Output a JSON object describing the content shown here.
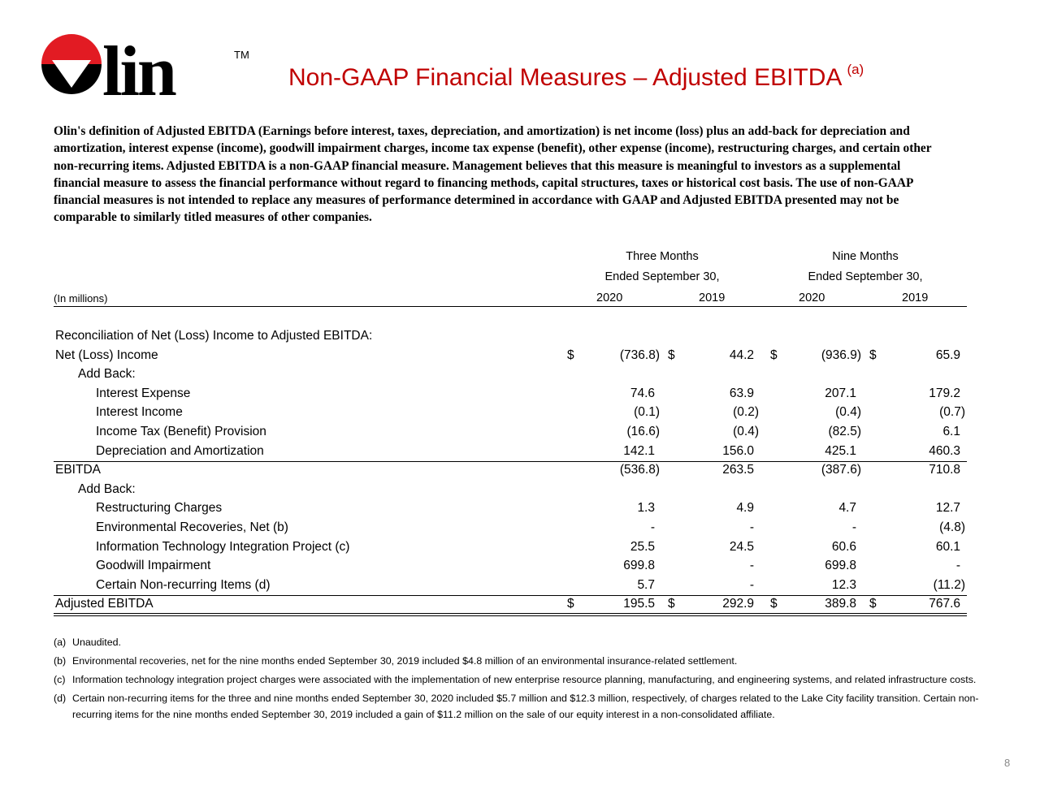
{
  "logo": {
    "text": "lin",
    "trademark": "TM"
  },
  "header": {
    "title": "Non-GAAP Financial Measures – Adjusted EBITDA",
    "title_note": "(a)"
  },
  "definition": "Olin's definition of Adjusted EBITDA (Earnings before interest, taxes, depreciation, and amortization) is net income (loss) plus an add-back for depreciation and amortization, interest expense (income), goodwill impairment charges, income tax expense (benefit), other expense (income), restructuring charges, and certain other non-recurring items.  Adjusted EBITDA is a non-GAAP financial measure.  Management believes that this measure is meaningful to investors as a supplemental financial measure to assess the financial performance without regard to financing methods, capital structures, taxes or historical cost basis.  The use of non-GAAP financial measures is not intended to replace any measures of performance determined in accordance with GAAP and Adjusted EBITDA presented may not be comparable to similarly titled measures of other companies.",
  "table": {
    "units": "(In millions)",
    "currency": "$",
    "groups": [
      {
        "line1": "Three Months",
        "line2": "Ended September 30,",
        "years": [
          "2020",
          "2019"
        ]
      },
      {
        "line1": "Nine Months",
        "line2": "Ended September 30,",
        "years": [
          "2020",
          "2019"
        ]
      }
    ],
    "rows": [
      {
        "label": "Reconciliation of Net (Loss) Income to Adjusted EBITDA:",
        "indent": 0
      },
      {
        "label": "Net (Loss) Income",
        "indent": 0,
        "currency": true,
        "values": [
          "(736.8)",
          "44.2",
          "(936.9)",
          "65.9"
        ]
      },
      {
        "label": "Add Back:",
        "indent": 1
      },
      {
        "label": "Interest Expense",
        "indent": 2,
        "values": [
          "74.6",
          "63.9",
          "207.1",
          "179.2"
        ]
      },
      {
        "label": "Interest Income",
        "indent": 2,
        "values": [
          "(0.1)",
          "(0.2)",
          "(0.4)",
          "(0.7)"
        ]
      },
      {
        "label": "Income Tax (Benefit) Provision",
        "indent": 2,
        "values": [
          "(16.6)",
          "(0.4)",
          "(82.5)",
          "6.1"
        ]
      },
      {
        "label": "Depreciation and Amortization",
        "indent": 2,
        "rule": "single",
        "values": [
          "142.1",
          "156.0",
          "425.1",
          "460.3"
        ]
      },
      {
        "label": "EBITDA",
        "indent": 0,
        "values": [
          "(536.8)",
          "263.5",
          "(387.6)",
          "710.8"
        ]
      },
      {
        "label": "Add Back:",
        "indent": 1
      },
      {
        "label": "Restructuring Charges",
        "indent": 2,
        "values": [
          "1.3",
          "4.9",
          "4.7",
          "12.7"
        ]
      },
      {
        "label": "Environmental Recoveries, Net (b)",
        "indent": 2,
        "values": [
          "-",
          "-",
          "-",
          "(4.8)"
        ]
      },
      {
        "label": "Information Technology Integration Project (c)",
        "indent": 2,
        "values": [
          "25.5",
          "24.5",
          "60.6",
          "60.1"
        ]
      },
      {
        "label": "Goodwill Impairment",
        "indent": 2,
        "values": [
          "699.8",
          "-",
          "699.8",
          "-"
        ]
      },
      {
        "label": "Certain Non-recurring Items (d)",
        "indent": 2,
        "rule": "single",
        "values": [
          "5.7",
          "-",
          "12.3",
          "(11.2)"
        ]
      },
      {
        "label": "Adjusted EBITDA",
        "indent": 0,
        "currency": true,
        "rule": "double",
        "values": [
          "195.5",
          "292.9",
          "389.8",
          "767.6"
        ]
      }
    ]
  },
  "footnotes": [
    {
      "marker": "(a)",
      "text": "Unaudited."
    },
    {
      "marker": "(b)",
      "text": "Environmental recoveries, net for the nine months ended September 30, 2019 included $4.8 million of an environmental insurance-related settlement."
    },
    {
      "marker": "(c)",
      "text": "Information technology integration project charges were associated with the implementation of new enterprise resource planning, manufacturing, and engineering systems, and related infrastructure costs."
    },
    {
      "marker": "(d)",
      "text": "Certain non-recurring items for the three and nine months ended September 30, 2020 included $5.7 million and $12.3 million, respectively, of charges related to the Lake City facility transition.  Certain non-recurring items for the nine months ended September 30, 2019 included a gain of $11.2 million on the sale of our equity interest in a non-consolidated affiliate."
    }
  ],
  "page_number": "8"
}
